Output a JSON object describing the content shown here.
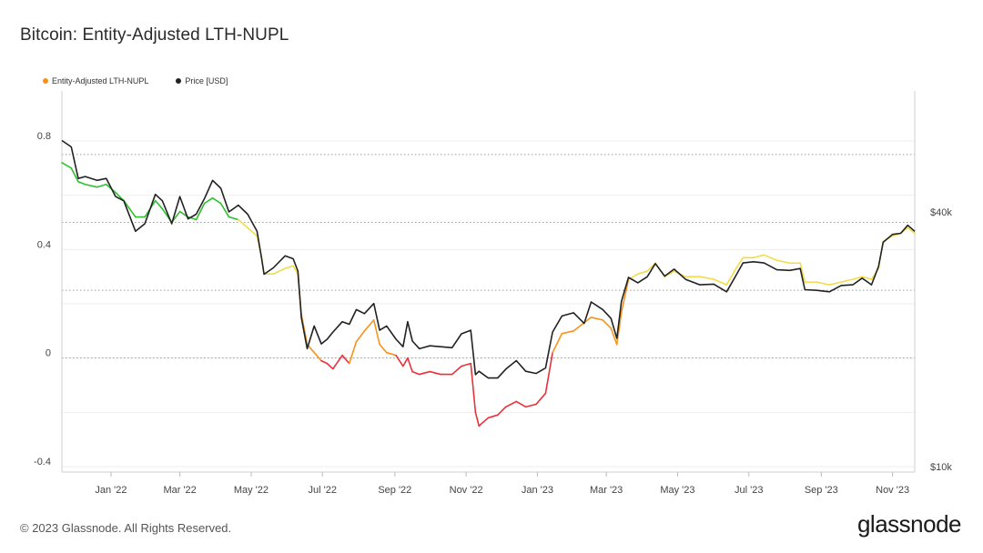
{
  "title": "Bitcoin: Entity-Adjusted LTH-NUPL",
  "footer": "© 2023 Glassnode. All Rights Reserved.",
  "brand": "glassnode",
  "chart_data": {
    "type": "line",
    "legend": [
      {
        "name": "Entity-Adjusted LTH-NUPL",
        "color": "#f7931a"
      },
      {
        "name": "Price [USD]",
        "color": "#222222"
      }
    ],
    "x_range": [
      "2021-11-20",
      "2023-11-20"
    ],
    "x_ticks": [
      {
        "date": "2022-01-01",
        "label": "Jan '22"
      },
      {
        "date": "2022-03-01",
        "label": "Mar '22"
      },
      {
        "date": "2022-05-01",
        "label": "May '22"
      },
      {
        "date": "2022-07-01",
        "label": "Jul '22"
      },
      {
        "date": "2022-09-01",
        "label": "Sep '22"
      },
      {
        "date": "2022-11-01",
        "label": "Nov '22"
      },
      {
        "date": "2023-01-01",
        "label": "Jan '23"
      },
      {
        "date": "2023-03-01",
        "label": "Mar '23"
      },
      {
        "date": "2023-05-01",
        "label": "May '23"
      },
      {
        "date": "2023-07-01",
        "label": "Jul '23"
      },
      {
        "date": "2023-09-01",
        "label": "Sep '23"
      },
      {
        "date": "2023-11-01",
        "label": "Nov '23"
      }
    ],
    "y_left": {
      "min": -0.4,
      "max": 0.8,
      "ticks": [
        {
          "v": 0.8,
          "label": "0.8"
        },
        {
          "v": 0.4,
          "label": "0.4"
        },
        {
          "v": 0,
          "label": "0"
        },
        {
          "v": -0.4,
          "label": "-0.4"
        }
      ]
    },
    "y_right": {
      "scale": "log",
      "min": 10000,
      "max": 70000,
      "ticks": [
        {
          "v": 40000,
          "label": "$40k"
        },
        {
          "v": 10000,
          "label": "$10k"
        }
      ]
    },
    "color_bands": [
      {
        "min": 0.5,
        "color": "#2fbf2f"
      },
      {
        "min": 0.25,
        "color": "#f2dc4a"
      },
      {
        "min": 0,
        "color": "#f7931a"
      },
      {
        "min": -1,
        "color": "#e8313a"
      }
    ],
    "series": [
      {
        "name": "Entity-Adjusted LTH-NUPL",
        "axis": "left",
        "points": [
          [
            "2021-11-20",
            0.72
          ],
          [
            "2021-11-28",
            0.7
          ],
          [
            "2021-12-04",
            0.65
          ],
          [
            "2021-12-10",
            0.64
          ],
          [
            "2021-12-20",
            0.63
          ],
          [
            "2021-12-28",
            0.64
          ],
          [
            "2022-01-05",
            0.61
          ],
          [
            "2022-01-12",
            0.58
          ],
          [
            "2022-01-22",
            0.52
          ],
          [
            "2022-01-30",
            0.52
          ],
          [
            "2022-02-08",
            0.58
          ],
          [
            "2022-02-14",
            0.55
          ],
          [
            "2022-02-22",
            0.5
          ],
          [
            "2022-03-01",
            0.54
          ],
          [
            "2022-03-08",
            0.52
          ],
          [
            "2022-03-15",
            0.51
          ],
          [
            "2022-03-22",
            0.57
          ],
          [
            "2022-03-29",
            0.59
          ],
          [
            "2022-04-05",
            0.57
          ],
          [
            "2022-04-12",
            0.52
          ],
          [
            "2022-04-20",
            0.51
          ],
          [
            "2022-04-28",
            0.48
          ],
          [
            "2022-05-06",
            0.45
          ],
          [
            "2022-05-10",
            0.37
          ],
          [
            "2022-05-12",
            0.31
          ],
          [
            "2022-05-20",
            0.31
          ],
          [
            "2022-05-30",
            0.33
          ],
          [
            "2022-06-06",
            0.34
          ],
          [
            "2022-06-10",
            0.31
          ],
          [
            "2022-06-13",
            0.16
          ],
          [
            "2022-06-18",
            0.05
          ],
          [
            "2022-06-24",
            0.02
          ],
          [
            "2022-06-30",
            -0.01
          ],
          [
            "2022-07-05",
            -0.02
          ],
          [
            "2022-07-10",
            -0.04
          ],
          [
            "2022-07-18",
            0.01
          ],
          [
            "2022-07-24",
            -0.02
          ],
          [
            "2022-07-30",
            0.06
          ],
          [
            "2022-08-06",
            0.1
          ],
          [
            "2022-08-14",
            0.14
          ],
          [
            "2022-08-19",
            0.05
          ],
          [
            "2022-08-25",
            0.02
          ],
          [
            "2022-09-02",
            0.01
          ],
          [
            "2022-09-08",
            -0.03
          ],
          [
            "2022-09-12",
            0.0
          ],
          [
            "2022-09-16",
            -0.05
          ],
          [
            "2022-09-22",
            -0.06
          ],
          [
            "2022-10-01",
            -0.05
          ],
          [
            "2022-10-10",
            -0.06
          ],
          [
            "2022-10-20",
            -0.06
          ],
          [
            "2022-10-28",
            -0.03
          ],
          [
            "2022-11-05",
            -0.02
          ],
          [
            "2022-11-09",
            -0.2
          ],
          [
            "2022-11-12",
            -0.25
          ],
          [
            "2022-11-20",
            -0.22
          ],
          [
            "2022-11-28",
            -0.21
          ],
          [
            "2022-12-05",
            -0.18
          ],
          [
            "2022-12-14",
            -0.16
          ],
          [
            "2022-12-22",
            -0.18
          ],
          [
            "2022-12-31",
            -0.17
          ],
          [
            "2023-01-08",
            -0.13
          ],
          [
            "2023-01-14",
            0.02
          ],
          [
            "2023-01-22",
            0.09
          ],
          [
            "2023-02-01",
            0.1
          ],
          [
            "2023-02-10",
            0.13
          ],
          [
            "2023-02-16",
            0.15
          ],
          [
            "2023-02-26",
            0.14
          ],
          [
            "2023-03-05",
            0.11
          ],
          [
            "2023-03-10",
            0.05
          ],
          [
            "2023-03-14",
            0.17
          ],
          [
            "2023-03-20",
            0.29
          ],
          [
            "2023-03-28",
            0.31
          ],
          [
            "2023-04-05",
            0.32
          ],
          [
            "2023-04-12",
            0.35
          ],
          [
            "2023-04-20",
            0.3
          ],
          [
            "2023-04-28",
            0.32
          ],
          [
            "2023-05-08",
            0.3
          ],
          [
            "2023-05-20",
            0.3
          ],
          [
            "2023-06-01",
            0.29
          ],
          [
            "2023-06-12",
            0.27
          ],
          [
            "2023-06-20",
            0.33
          ],
          [
            "2023-06-26",
            0.37
          ],
          [
            "2023-07-05",
            0.37
          ],
          [
            "2023-07-14",
            0.38
          ],
          [
            "2023-07-25",
            0.36
          ],
          [
            "2023-08-05",
            0.35
          ],
          [
            "2023-08-14",
            0.35
          ],
          [
            "2023-08-18",
            0.28
          ],
          [
            "2023-08-28",
            0.28
          ],
          [
            "2023-09-08",
            0.27
          ],
          [
            "2023-09-18",
            0.28
          ],
          [
            "2023-09-28",
            0.29
          ],
          [
            "2023-10-06",
            0.3
          ],
          [
            "2023-10-14",
            0.29
          ],
          [
            "2023-10-20",
            0.33
          ],
          [
            "2023-10-24",
            0.43
          ],
          [
            "2023-11-01",
            0.45
          ],
          [
            "2023-11-08",
            0.46
          ],
          [
            "2023-11-14",
            0.48
          ],
          [
            "2023-11-20",
            0.46
          ]
        ]
      },
      {
        "name": "Price [USD]",
        "axis": "right",
        "color": "#222222",
        "points": [
          [
            "2021-11-20",
            59000
          ],
          [
            "2021-11-28",
            57000
          ],
          [
            "2021-12-04",
            48000
          ],
          [
            "2021-12-10",
            48500
          ],
          [
            "2021-12-20",
            47500
          ],
          [
            "2021-12-28",
            48000
          ],
          [
            "2022-01-05",
            43500
          ],
          [
            "2022-01-12",
            42500
          ],
          [
            "2022-01-22",
            36000
          ],
          [
            "2022-01-30",
            37500
          ],
          [
            "2022-02-08",
            44000
          ],
          [
            "2022-02-14",
            42500
          ],
          [
            "2022-02-22",
            37500
          ],
          [
            "2022-03-01",
            43500
          ],
          [
            "2022-03-08",
            38500
          ],
          [
            "2022-03-15",
            39500
          ],
          [
            "2022-03-22",
            43000
          ],
          [
            "2022-03-29",
            47500
          ],
          [
            "2022-04-05",
            45500
          ],
          [
            "2022-04-12",
            40000
          ],
          [
            "2022-04-20",
            41500
          ],
          [
            "2022-04-28",
            39500
          ],
          [
            "2022-05-06",
            36000
          ],
          [
            "2022-05-10",
            31000
          ],
          [
            "2022-05-12",
            28500
          ],
          [
            "2022-05-20",
            29500
          ],
          [
            "2022-05-30",
            31500
          ],
          [
            "2022-06-06",
            31000
          ],
          [
            "2022-06-10",
            29000
          ],
          [
            "2022-06-13",
            22500
          ],
          [
            "2022-06-18",
            19000
          ],
          [
            "2022-06-24",
            21500
          ],
          [
            "2022-06-30",
            19500
          ],
          [
            "2022-07-05",
            20000
          ],
          [
            "2022-07-10",
            20800
          ],
          [
            "2022-07-18",
            22000
          ],
          [
            "2022-07-24",
            21700
          ],
          [
            "2022-07-30",
            23500
          ],
          [
            "2022-08-06",
            23000
          ],
          [
            "2022-08-14",
            24300
          ],
          [
            "2022-08-19",
            21000
          ],
          [
            "2022-08-25",
            21500
          ],
          [
            "2022-09-02",
            20000
          ],
          [
            "2022-09-08",
            19200
          ],
          [
            "2022-09-12",
            22000
          ],
          [
            "2022-09-16",
            19800
          ],
          [
            "2022-09-22",
            19000
          ],
          [
            "2022-10-01",
            19300
          ],
          [
            "2022-10-10",
            19200
          ],
          [
            "2022-10-20",
            19100
          ],
          [
            "2022-10-28",
            20600
          ],
          [
            "2022-11-05",
            21000
          ],
          [
            "2022-11-09",
            16500
          ],
          [
            "2022-11-12",
            16800
          ],
          [
            "2022-11-20",
            16200
          ],
          [
            "2022-11-28",
            16200
          ],
          [
            "2022-12-05",
            17000
          ],
          [
            "2022-12-14",
            17800
          ],
          [
            "2022-12-22",
            16800
          ],
          [
            "2022-12-31",
            16600
          ],
          [
            "2023-01-08",
            17100
          ],
          [
            "2023-01-14",
            20800
          ],
          [
            "2023-01-22",
            22700
          ],
          [
            "2023-02-01",
            23100
          ],
          [
            "2023-02-10",
            21800
          ],
          [
            "2023-02-16",
            24500
          ],
          [
            "2023-02-26",
            23500
          ],
          [
            "2023-03-05",
            22400
          ],
          [
            "2023-03-10",
            20100
          ],
          [
            "2023-03-14",
            24600
          ],
          [
            "2023-03-20",
            28000
          ],
          [
            "2023-03-28",
            27200
          ],
          [
            "2023-04-05",
            28100
          ],
          [
            "2023-04-12",
            30200
          ],
          [
            "2023-04-20",
            28200
          ],
          [
            "2023-04-28",
            29300
          ],
          [
            "2023-05-08",
            27700
          ],
          [
            "2023-05-20",
            26900
          ],
          [
            "2023-06-01",
            27000
          ],
          [
            "2023-06-12",
            25900
          ],
          [
            "2023-06-20",
            28300
          ],
          [
            "2023-06-26",
            30300
          ],
          [
            "2023-07-05",
            30500
          ],
          [
            "2023-07-14",
            30300
          ],
          [
            "2023-07-25",
            29200
          ],
          [
            "2023-08-05",
            29100
          ],
          [
            "2023-08-14",
            29400
          ],
          [
            "2023-08-18",
            26200
          ],
          [
            "2023-08-28",
            26100
          ],
          [
            "2023-09-08",
            25900
          ],
          [
            "2023-09-18",
            26800
          ],
          [
            "2023-09-28",
            26900
          ],
          [
            "2023-10-06",
            27900
          ],
          [
            "2023-10-14",
            26900
          ],
          [
            "2023-10-20",
            29700
          ],
          [
            "2023-10-24",
            33900
          ],
          [
            "2023-11-01",
            35400
          ],
          [
            "2023-11-08",
            35600
          ],
          [
            "2023-11-14",
            37200
          ],
          [
            "2023-11-20",
            36000
          ]
        ]
      }
    ]
  }
}
